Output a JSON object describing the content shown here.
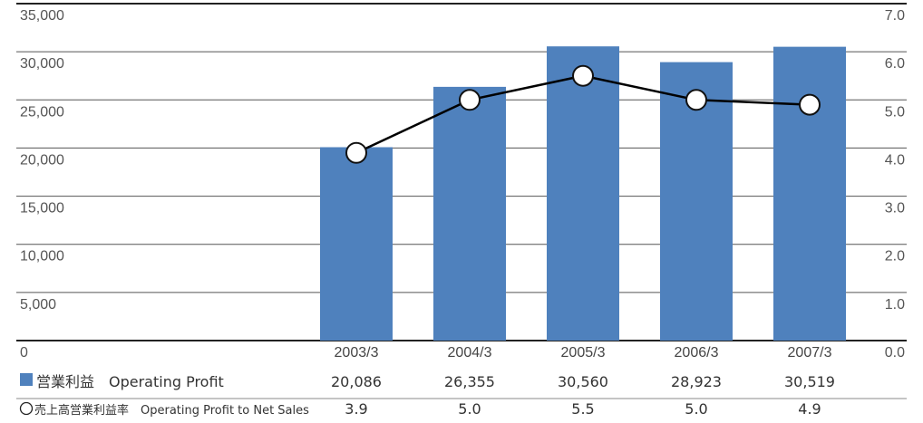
{
  "chart_data": {
    "type": "bar",
    "categories": [
      "2003/3",
      "2004/3",
      "2005/3",
      "2006/3",
      "2007/3"
    ],
    "left_axis": {
      "ticks": [
        "0",
        "5,000",
        "10,000",
        "15,000",
        "20,000",
        "25,000",
        "30,000",
        "35,000"
      ],
      "ylim": [
        0,
        35000
      ]
    },
    "right_axis": {
      "ticks": [
        "0.0",
        "1.0",
        "2.0",
        "3.0",
        "4.0",
        "5.0",
        "6.0",
        "7.0"
      ],
      "ylim": [
        0,
        7
      ]
    },
    "series": [
      {
        "name": "営業利益　Operating Profit",
        "type": "bar",
        "axis": "left",
        "values": [
          20086,
          26355,
          30560,
          28923,
          30519
        ],
        "labels": [
          "20,086",
          "26,355",
          "30,560",
          "28,923",
          "30,519"
        ],
        "color": "#4f81bd"
      },
      {
        "name": "売上高営業利益率　Operating Profit to Net Sales",
        "type": "line",
        "axis": "right",
        "values": [
          3.9,
          5.0,
          5.5,
          5.0,
          4.9
        ],
        "labels": [
          "3.9",
          "5.0",
          "5.5",
          "5.0",
          "4.9"
        ],
        "color": "#000000"
      }
    ],
    "grid": true,
    "legend": "bottom-table"
  }
}
